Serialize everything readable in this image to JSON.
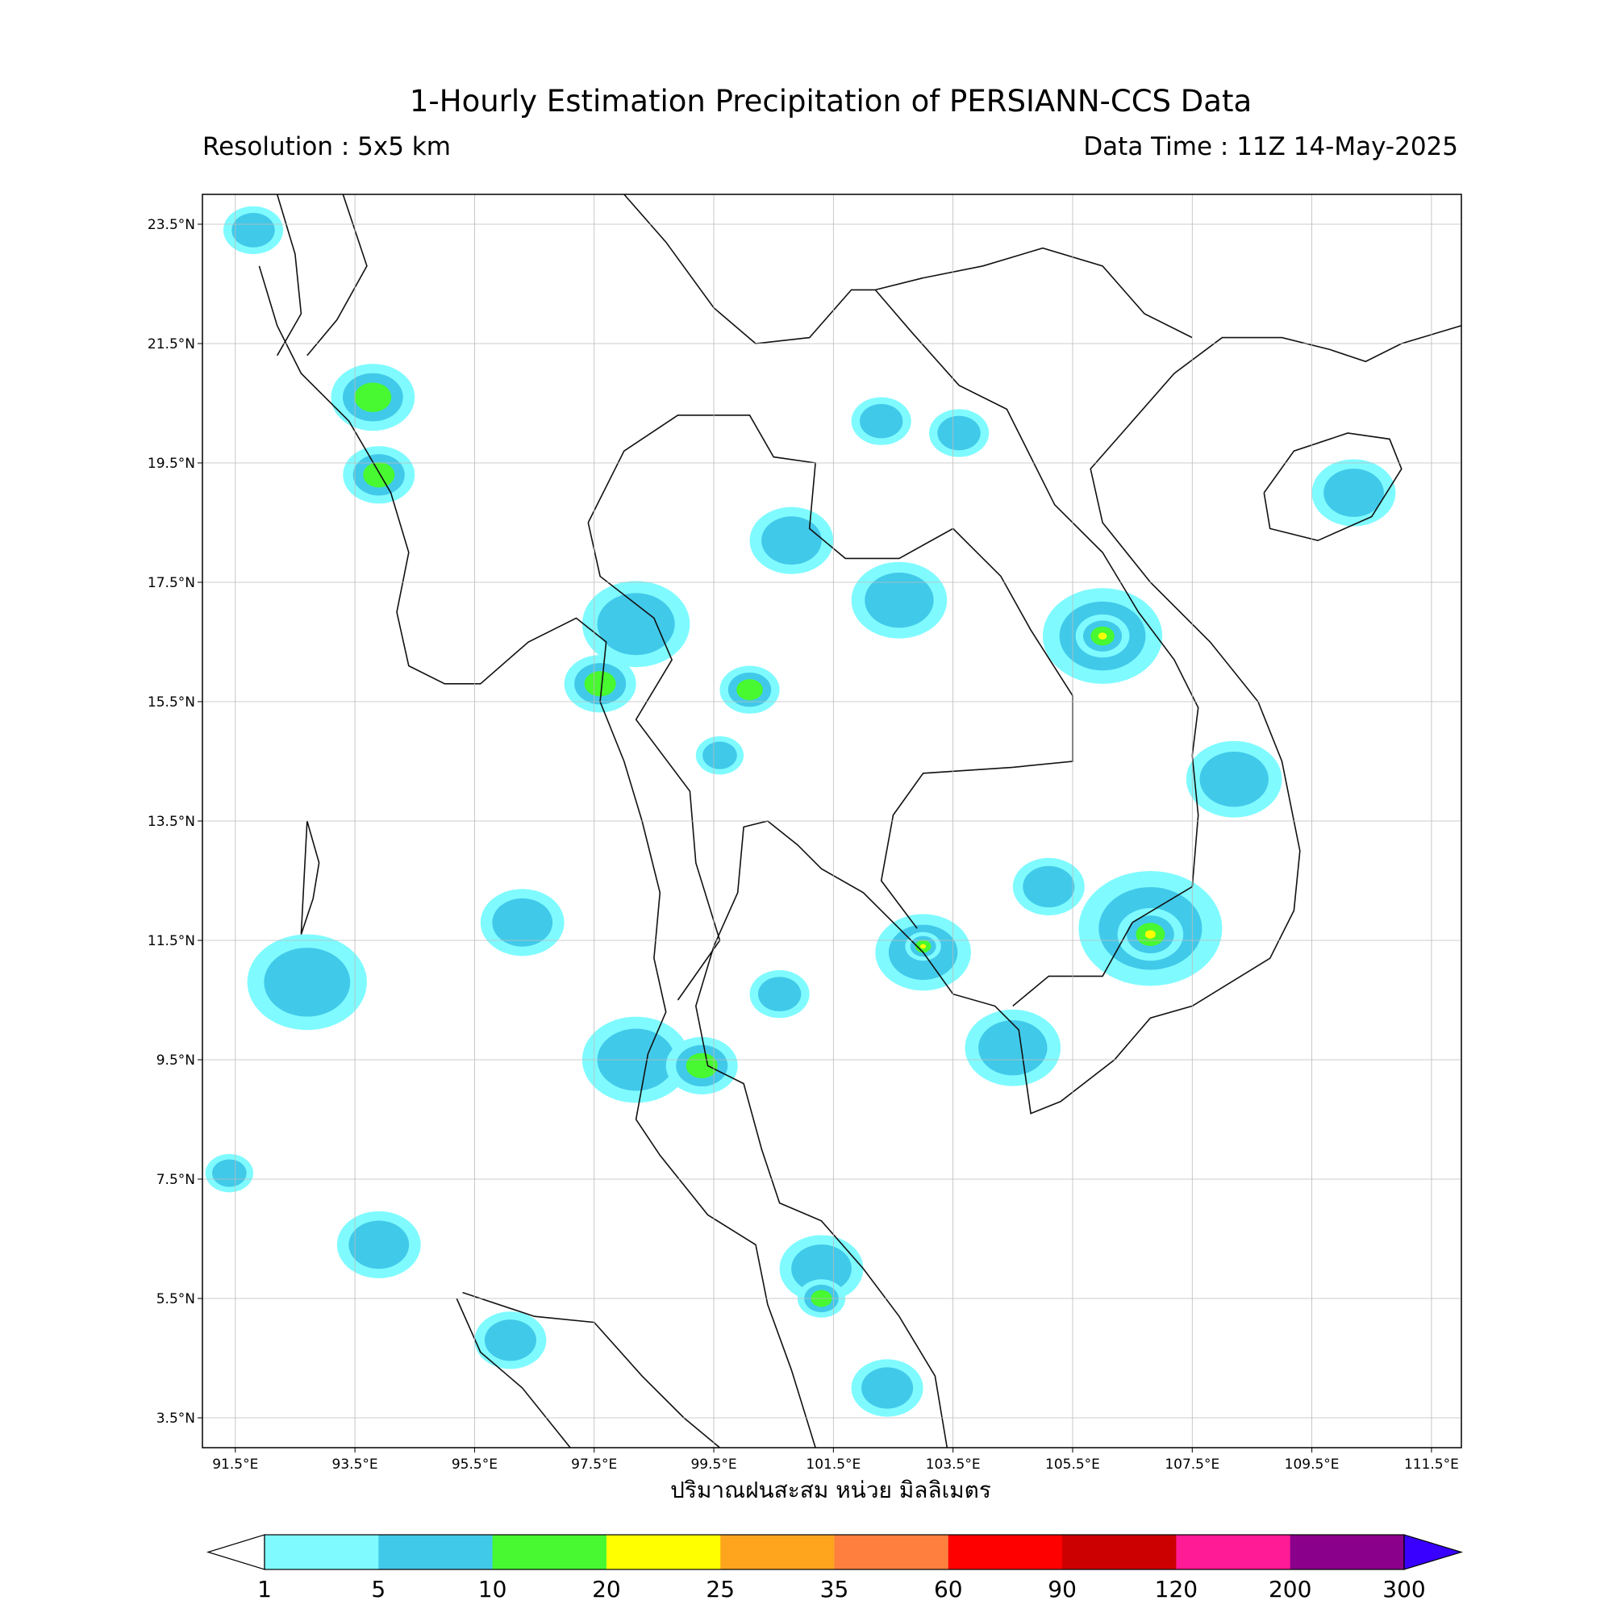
{
  "header": {
    "title": "1-Hourly Estimation Precipitation of PERSIANN-CCS Data",
    "resolution": "Resolution : 5x5 km",
    "data_time": "Data Time : 11Z 14-May-2025"
  },
  "axes": {
    "lat_labels": [
      "3.5°N",
      "5.5°N",
      "7.5°N",
      "9.5°N",
      "11.5°N",
      "13.5°N",
      "15.5°N",
      "17.5°N",
      "19.5°N",
      "21.5°N",
      "23.5°N"
    ],
    "lat_values": [
      3.5,
      5.5,
      7.5,
      9.5,
      11.5,
      13.5,
      15.5,
      17.5,
      19.5,
      21.5,
      23.5
    ],
    "lon_labels": [
      "91.5°E",
      "93.5°E",
      "95.5°E",
      "97.5°E",
      "99.5°E",
      "101.5°E",
      "103.5°E",
      "105.5°E",
      "107.5°E",
      "109.5°E",
      "111.5°E"
    ],
    "lon_values": [
      91.5,
      93.5,
      95.5,
      97.5,
      99.5,
      101.5,
      103.5,
      105.5,
      107.5,
      109.5,
      111.5
    ],
    "lon_range": [
      90.95,
      112.0
    ],
    "lat_range": [
      3.0,
      24.0
    ],
    "xlabel": "ปริมาณฝนสะสม หน่วย มิลลิเมตร"
  },
  "colorbar": {
    "ticks": [
      "1",
      "5",
      "10",
      "20",
      "25",
      "35",
      "60",
      "90",
      "120",
      "200",
      "300"
    ],
    "colors": [
      "#7ffbff",
      "#41c9ea",
      "#48f830",
      "#ffff00",
      "#ffa51d",
      "#ff7f3f",
      "#ff0000",
      "#cc0000",
      "#ff1a96",
      "#8b008b"
    ],
    "over_color": "#3a00ff",
    "under_color": "#ffffff"
  },
  "rain_cells": [
    {
      "lon": 91.8,
      "lat": 23.4,
      "r": 0.5,
      "level": 1
    },
    {
      "lon": 93.8,
      "lat": 20.6,
      "r": 0.7,
      "level": 2
    },
    {
      "lon": 93.9,
      "lat": 19.3,
      "r": 0.6,
      "level": 2
    },
    {
      "lon": 98.2,
      "lat": 16.8,
      "r": 0.9,
      "level": 1
    },
    {
      "lon": 97.6,
      "lat": 15.8,
      "r": 0.6,
      "level": 2
    },
    {
      "lon": 106.0,
      "lat": 16.6,
      "r": 1.0,
      "level": 1
    },
    {
      "lon": 106.0,
      "lat": 16.6,
      "r": 0.45,
      "level": 4
    },
    {
      "lon": 106.8,
      "lat": 11.7,
      "r": 1.2,
      "level": 1
    },
    {
      "lon": 106.8,
      "lat": 11.6,
      "r": 0.55,
      "level": 4
    },
    {
      "lon": 103.0,
      "lat": 11.3,
      "r": 0.8,
      "level": 1
    },
    {
      "lon": 103.0,
      "lat": 11.4,
      "r": 0.3,
      "level": 3
    },
    {
      "lon": 104.5,
      "lat": 9.7,
      "r": 0.8,
      "level": 1
    },
    {
      "lon": 92.7,
      "lat": 10.8,
      "r": 1.0,
      "level": 1
    },
    {
      "lon": 96.3,
      "lat": 11.8,
      "r": 0.7,
      "level": 1
    },
    {
      "lon": 101.3,
      "lat": 6.0,
      "r": 0.7,
      "level": 1
    },
    {
      "lon": 101.3,
      "lat": 5.5,
      "r": 0.4,
      "level": 2
    },
    {
      "lon": 102.4,
      "lat": 4.0,
      "r": 0.6,
      "level": 1
    },
    {
      "lon": 110.2,
      "lat": 19.0,
      "r": 0.7,
      "level": 1
    },
    {
      "lon": 108.2,
      "lat": 14.2,
      "r": 0.8,
      "level": 1
    },
    {
      "lon": 102.3,
      "lat": 20.2,
      "r": 0.5,
      "level": 1
    },
    {
      "lon": 103.6,
      "lat": 20.0,
      "r": 0.5,
      "level": 1
    },
    {
      "lon": 98.2,
      "lat": 9.5,
      "r": 0.9,
      "level": 1
    },
    {
      "lon": 99.3,
      "lat": 9.4,
      "r": 0.6,
      "level": 2
    },
    {
      "lon": 100.6,
      "lat": 10.6,
      "r": 0.5,
      "level": 1
    },
    {
      "lon": 93.9,
      "lat": 6.4,
      "r": 0.7,
      "level": 1
    },
    {
      "lon": 96.1,
      "lat": 4.8,
      "r": 0.6,
      "level": 1
    },
    {
      "lon": 105.1,
      "lat": 12.4,
      "r": 0.6,
      "level": 1
    },
    {
      "lon": 91.4,
      "lat": 7.6,
      "r": 0.4,
      "level": 1
    },
    {
      "lon": 100.8,
      "lat": 18.2,
      "r": 0.7,
      "level": 1
    },
    {
      "lon": 102.6,
      "lat": 17.2,
      "r": 0.8,
      "level": 1
    },
    {
      "lon": 100.1,
      "lat": 15.7,
      "r": 0.5,
      "level": 2
    },
    {
      "lon": 99.6,
      "lat": 14.6,
      "r": 0.4,
      "level": 1
    }
  ]
}
